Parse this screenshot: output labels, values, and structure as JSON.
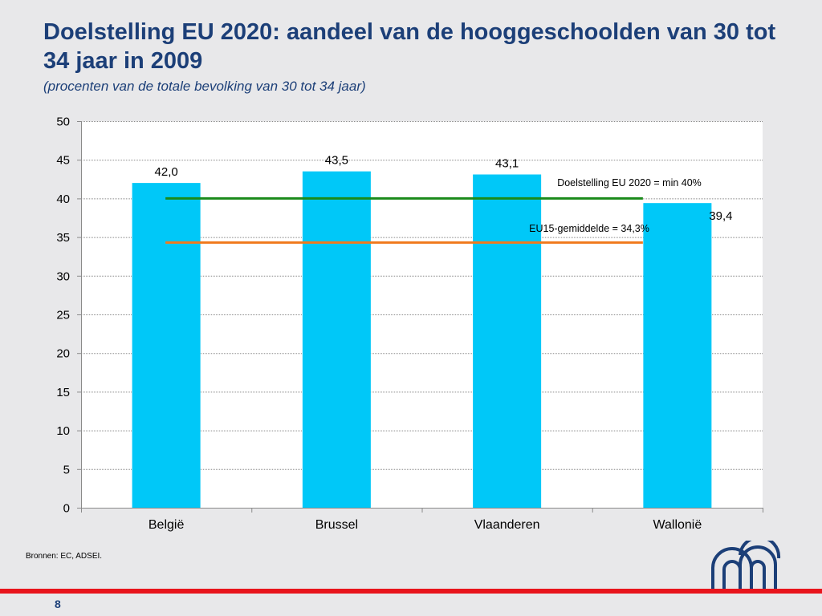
{
  "slide": {
    "title": "Doelstelling EU 2020: aandeel van de hooggeschoolden van 30 tot 34 jaar in 2009",
    "subtitle": "(procenten van de totale bevolking van 30 tot 34 jaar)",
    "source": "Bronnen: EC, ADSEI.",
    "page_number": "8",
    "footer_color": "#e8141c",
    "title_color": "#1c3f78",
    "logo_icon": "institution-logo-icon"
  },
  "chart_data": {
    "type": "bar",
    "title": "",
    "xlabel": "",
    "ylabel": "",
    "categories": [
      "België",
      "Brussel",
      "Vlaanderen",
      "Wallonië"
    ],
    "values": [
      42.0,
      43.5,
      43.1,
      39.4
    ],
    "value_labels": [
      "42,0",
      "43,5",
      "43,1",
      "39,4"
    ],
    "ylim": [
      0,
      50
    ],
    "yticks": [
      0,
      5,
      10,
      15,
      20,
      25,
      30,
      35,
      40,
      45,
      50
    ],
    "grid": true,
    "bar_color": "#00c8f8",
    "reference_lines": [
      {
        "label": "Doelstelling EU 2020 = min 40%",
        "value": 40.0,
        "color": "#1a8a1a"
      },
      {
        "label": "EU15-gemiddelde = 34,3%",
        "value": 34.3,
        "color": "#f07a1e"
      }
    ]
  }
}
